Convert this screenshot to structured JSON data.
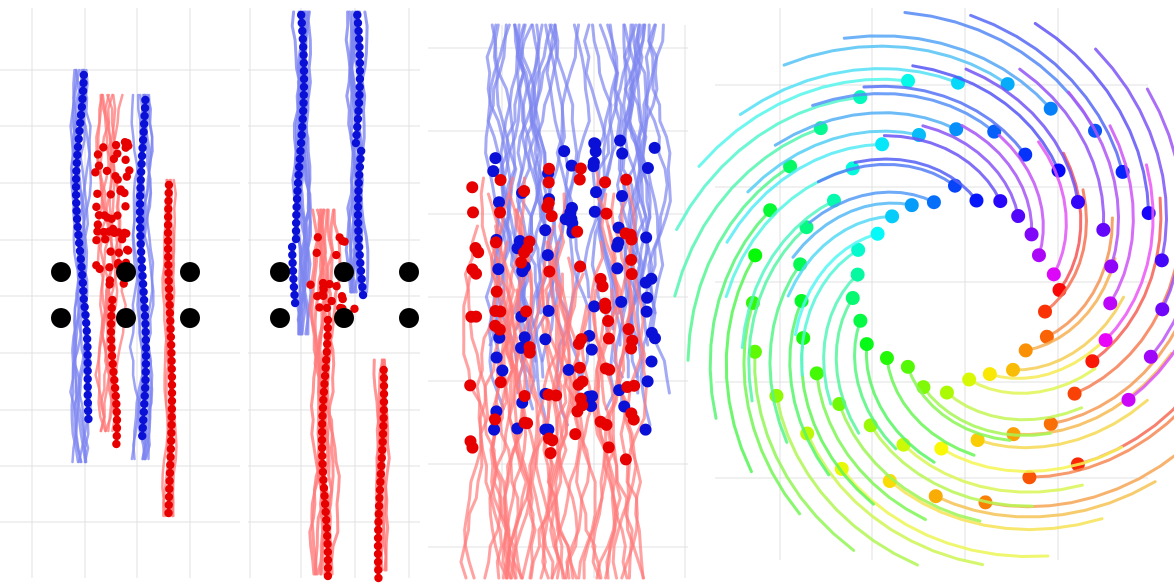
{
  "colors": {
    "background": "#ffffff",
    "grid": "#e1e1e1",
    "agent_red": "#e60000",
    "trail_red": "#ff7a7a",
    "agent_blue": "#0a10d6",
    "trail_blue": "#7e86f0",
    "obstacle": "#000000"
  },
  "panels": [
    {
      "id": "panel-1",
      "kind": "crossing-with-obstacles"
    },
    {
      "id": "panel-2",
      "kind": "crossing-with-obstacles"
    },
    {
      "id": "panel-3",
      "kind": "dense-counterflow"
    },
    {
      "id": "panel-4",
      "kind": "circular-swap",
      "coloring": "rainbow-by-agent"
    }
  ]
}
